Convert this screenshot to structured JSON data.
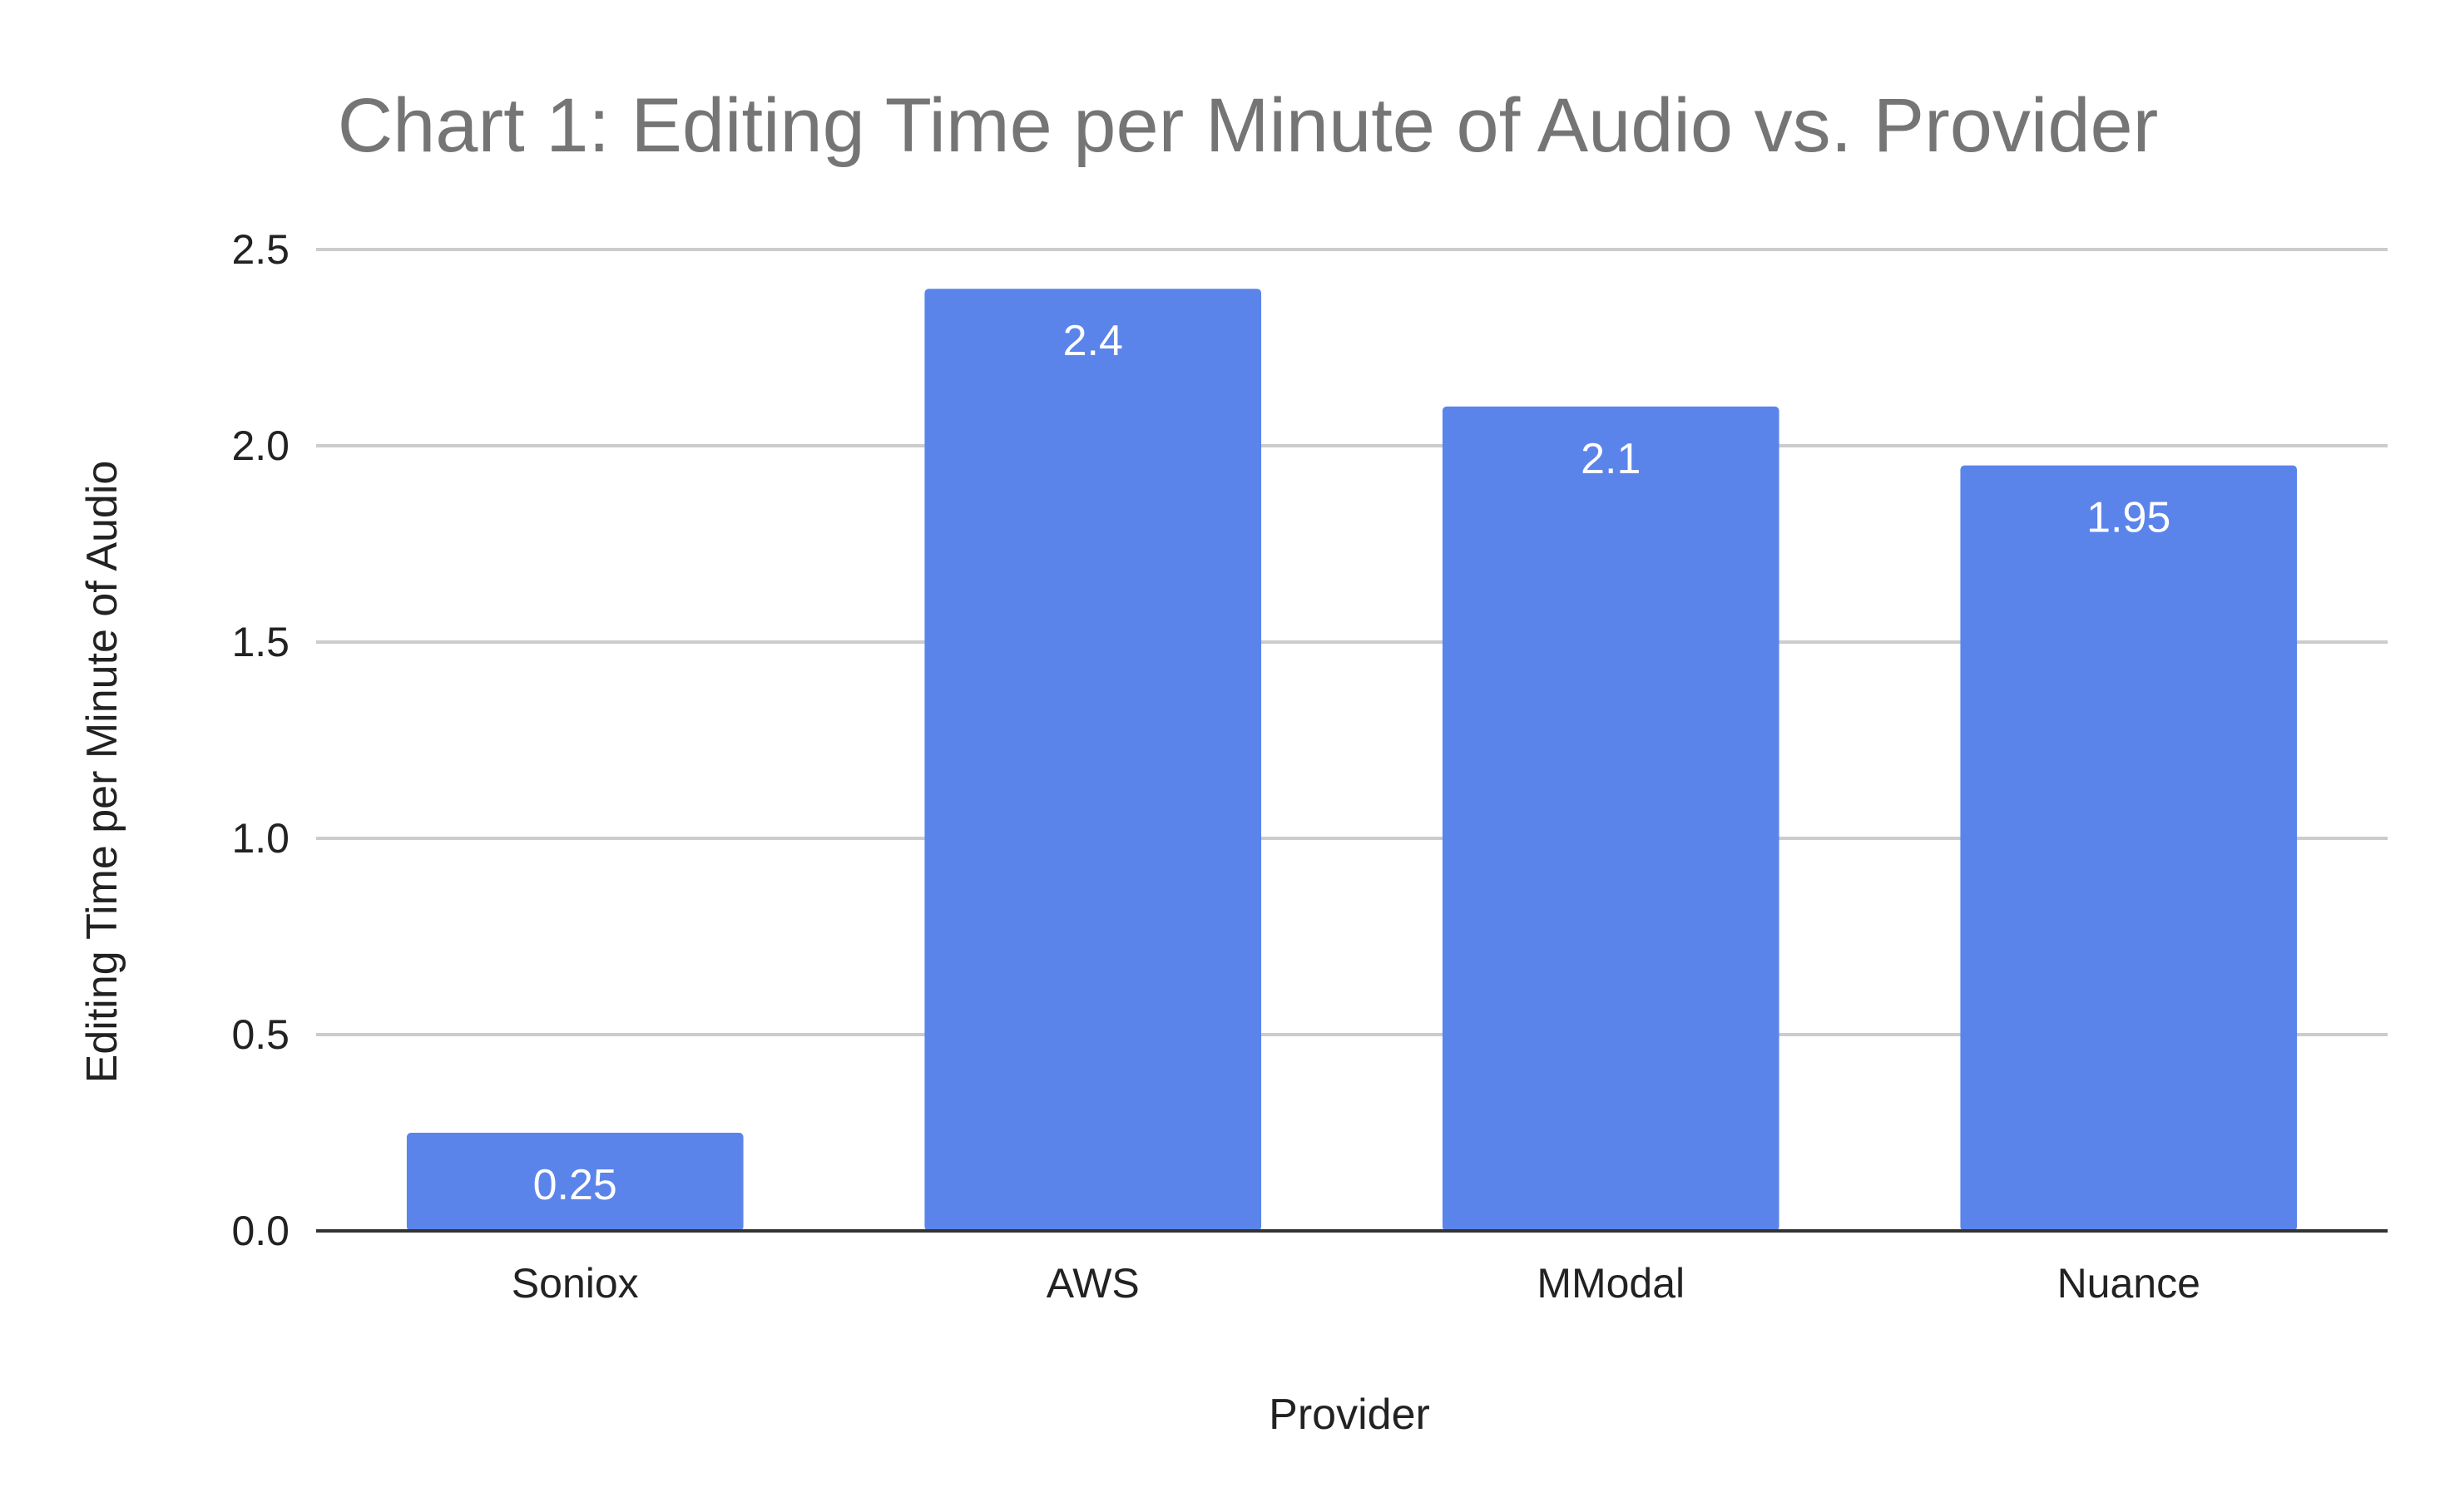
{
  "chart_data": {
    "type": "bar",
    "title": "Chart 1: Editing Time per Minute of Audio vs. Provider",
    "xlabel": "Provider",
    "ylabel": "Editing Time per Minute of Audio",
    "categories": [
      "Soniox",
      "AWS",
      "MModal",
      "Nuance"
    ],
    "values": [
      0.25,
      2.4,
      2.1,
      1.95
    ],
    "data_labels": [
      "0.25",
      "2.4",
      "2.1",
      "1.95"
    ],
    "ylim": [
      0,
      2.5
    ],
    "yticks": [
      "0.0",
      "0.5",
      "1.0",
      "1.5",
      "2.0",
      "2.5"
    ],
    "grid": true,
    "legend": "none",
    "colors": {
      "bar": "#5b84eb",
      "title": "#757575",
      "grid": "#cccccc",
      "axis": "#333333"
    }
  }
}
